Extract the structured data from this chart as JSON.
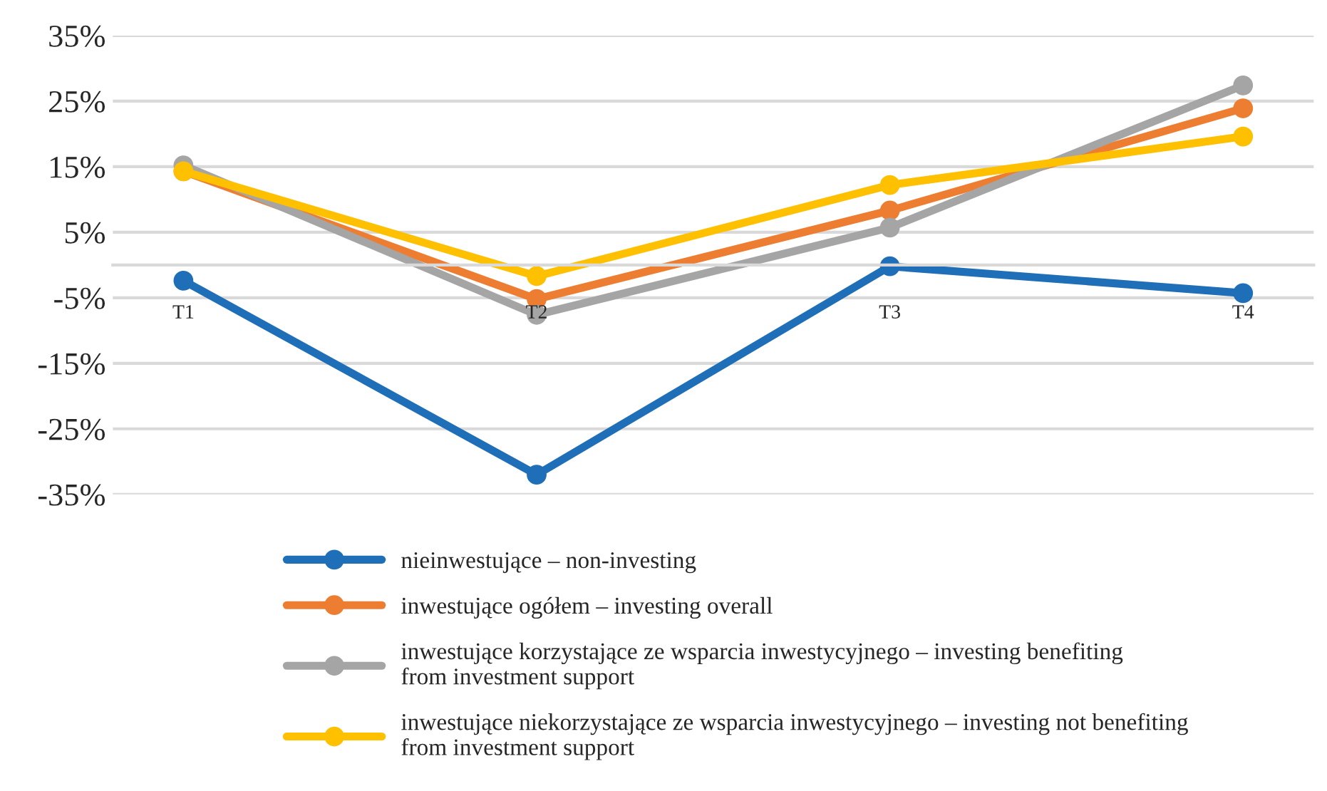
{
  "chart_data": {
    "type": "line",
    "categories": [
      "T1",
      "T2",
      "T3",
      "T4"
    ],
    "series": [
      {
        "name": "nieinwestujące – non-investing",
        "color": "#1f6fb8",
        "values": [
          -2.4,
          -32,
          -0.2,
          -4.3
        ]
      },
      {
        "name": "inwestujące ogółem – investing overall",
        "color": "#ed7d31",
        "values": [
          14.3,
          -5.2,
          8.3,
          23.9
        ]
      },
      {
        "name": "inwestujące korzystające ze wsparcia inwestycyjnego – investing benefiting\nfrom investment support",
        "color": "#a5a5a5",
        "values": [
          15.2,
          -7.6,
          5.7,
          27.4
        ]
      },
      {
        "name": "inwestujące niekorzystające ze wsparcia inwestycyjnego – investing not benefiting\nfrom investment support",
        "color": "#ffc000",
        "values": [
          14.3,
          -1.7,
          12.2,
          19.6
        ]
      }
    ],
    "ylim": [
      -35,
      35
    ],
    "yticks": [
      {
        "value": -35,
        "label": "-35%"
      },
      {
        "value": -25,
        "label": "-25%"
      },
      {
        "value": -15,
        "label": "-15%"
      },
      {
        "value": -5,
        "label": "-5%"
      },
      {
        "value": 5,
        "label": "5%"
      },
      {
        "value": 15,
        "label": "15%"
      },
      {
        "value": 25,
        "label": "25%"
      },
      {
        "value": 35,
        "label": "35%"
      }
    ],
    "grid": "y",
    "legend": "bottom",
    "marker": "circle",
    "line_style": "solid"
  }
}
